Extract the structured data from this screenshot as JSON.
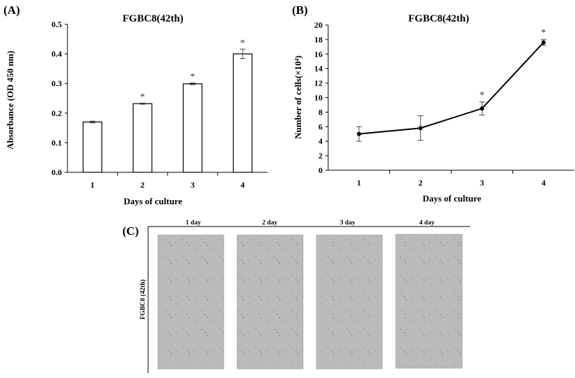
{
  "panels": {
    "a_label": "(A)",
    "b_label": "(B)",
    "c_label": "(C)"
  },
  "chart_data": [
    {
      "type": "bar",
      "title": "FGBC8(42th)",
      "xlabel": "Days of culture",
      "ylabel": "Absorbance (OD 450 nm)",
      "categories": [
        "1",
        "2",
        "3",
        "4"
      ],
      "values": [
        0.17,
        0.232,
        0.299,
        0.4
      ],
      "errors": [
        0.003,
        0.002,
        0.003,
        0.016
      ],
      "significance": [
        "",
        "*",
        "*",
        "*"
      ],
      "ylim": [
        0,
        0.5
      ],
      "yticks": [
        "0.0",
        "0.1",
        "0.2",
        "0.3",
        "0.4",
        "0.5"
      ],
      "grid": false,
      "bar_fill": "#ffffff",
      "bar_stroke": "#000000"
    },
    {
      "type": "line",
      "title": "FGBC8(42th)",
      "xlabel": "Days of culture",
      "ylabel": "Number of cells(×10⁴)",
      "categories": [
        "1",
        "2",
        "3",
        "4"
      ],
      "values": [
        5.0,
        5.8,
        8.5,
        17.6
      ],
      "errors": [
        1.0,
        1.7,
        0.9,
        0.4
      ],
      "significance": [
        "",
        "",
        "*",
        "*"
      ],
      "ylim": [
        0,
        20
      ],
      "yticks": [
        "0",
        "2",
        "4",
        "6",
        "8",
        "10",
        "12",
        "14",
        "16",
        "18",
        "20"
      ],
      "grid": false,
      "line_color": "#000000"
    }
  ],
  "micrographs": {
    "row_label": "FGBC8 (42th)",
    "days": [
      "1 day",
      "2 day",
      "3 day",
      "4 day"
    ],
    "image_color": "#b9b9b9"
  }
}
